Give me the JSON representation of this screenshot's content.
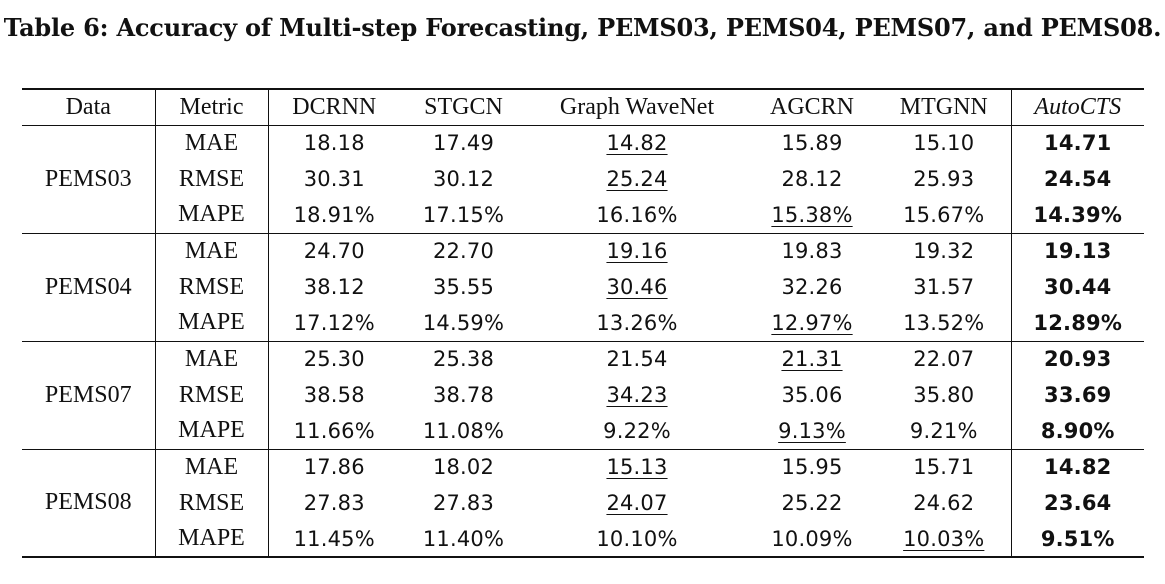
{
  "caption": "Table 6: Accuracy of Multi-step Forecasting, PEMS03, PEMS04, PEMS07, and PEMS08.",
  "headers": {
    "data": "Data",
    "metric": "Metric",
    "dcrnn": "DCRNN",
    "stgcn": "STGCN",
    "gwn": "Graph WaveNet",
    "agcrn": "AGCRN",
    "mtgnn": "MTGNN",
    "autocts": "AutoCTS"
  },
  "groups": [
    {
      "dataset": "PEMS03",
      "rows": [
        {
          "metric": "MAE",
          "dcrnn": "18.18",
          "stgcn": "17.49",
          "gwn": "14.82",
          "agcrn": "15.89",
          "mtgnn": "15.10",
          "autocts": "14.71"
        },
        {
          "metric": "RMSE",
          "dcrnn": "30.31",
          "stgcn": "30.12",
          "gwn": "25.24",
          "agcrn": "28.12",
          "mtgnn": "25.93",
          "autocts": "24.54"
        },
        {
          "metric": "MAPE",
          "dcrnn": "18.91%",
          "stgcn": "17.15%",
          "gwn": "16.16%",
          "agcrn": "15.38%",
          "mtgnn": "15.67%",
          "autocts": "14.39%"
        }
      ]
    },
    {
      "dataset": "PEMS04",
      "rows": [
        {
          "metric": "MAE",
          "dcrnn": "24.70",
          "stgcn": "22.70",
          "gwn": "19.16",
          "agcrn": "19.83",
          "mtgnn": "19.32",
          "autocts": "19.13"
        },
        {
          "metric": "RMSE",
          "dcrnn": "38.12",
          "stgcn": "35.55",
          "gwn": "30.46",
          "agcrn": "32.26",
          "mtgnn": "31.57",
          "autocts": "30.44"
        },
        {
          "metric": "MAPE",
          "dcrnn": "17.12%",
          "stgcn": "14.59%",
          "gwn": "13.26%",
          "agcrn": "12.97%",
          "mtgnn": "13.52%",
          "autocts": "12.89%"
        }
      ]
    },
    {
      "dataset": "PEMS07",
      "rows": [
        {
          "metric": "MAE",
          "dcrnn": "25.30",
          "stgcn": "25.38",
          "gwn": "21.54",
          "agcrn": "21.31",
          "mtgnn": "22.07",
          "autocts": "20.93"
        },
        {
          "metric": "RMSE",
          "dcrnn": "38.58",
          "stgcn": "38.78",
          "gwn": "34.23",
          "agcrn": "35.06",
          "mtgnn": "35.80",
          "autocts": "33.69"
        },
        {
          "metric": "MAPE",
          "dcrnn": "11.66%",
          "stgcn": "11.08%",
          "gwn": "9.22%",
          "agcrn": "9.13%",
          "mtgnn": "9.21%",
          "autocts": "8.90%"
        }
      ]
    },
    {
      "dataset": "PEMS08",
      "rows": [
        {
          "metric": "MAE",
          "dcrnn": "17.86",
          "stgcn": "18.02",
          "gwn": "15.13",
          "agcrn": "15.95",
          "mtgnn": "15.71",
          "autocts": "14.82"
        },
        {
          "metric": "RMSE",
          "dcrnn": "27.83",
          "stgcn": "27.83",
          "gwn": "24.07",
          "agcrn": "25.22",
          "mtgnn": "24.62",
          "autocts": "23.64"
        },
        {
          "metric": "MAPE",
          "dcrnn": "11.45%",
          "stgcn": "11.40%",
          "gwn": "10.10%",
          "agcrn": "10.09%",
          "mtgnn": "10.03%",
          "autocts": "9.51%"
        }
      ]
    }
  ]
}
